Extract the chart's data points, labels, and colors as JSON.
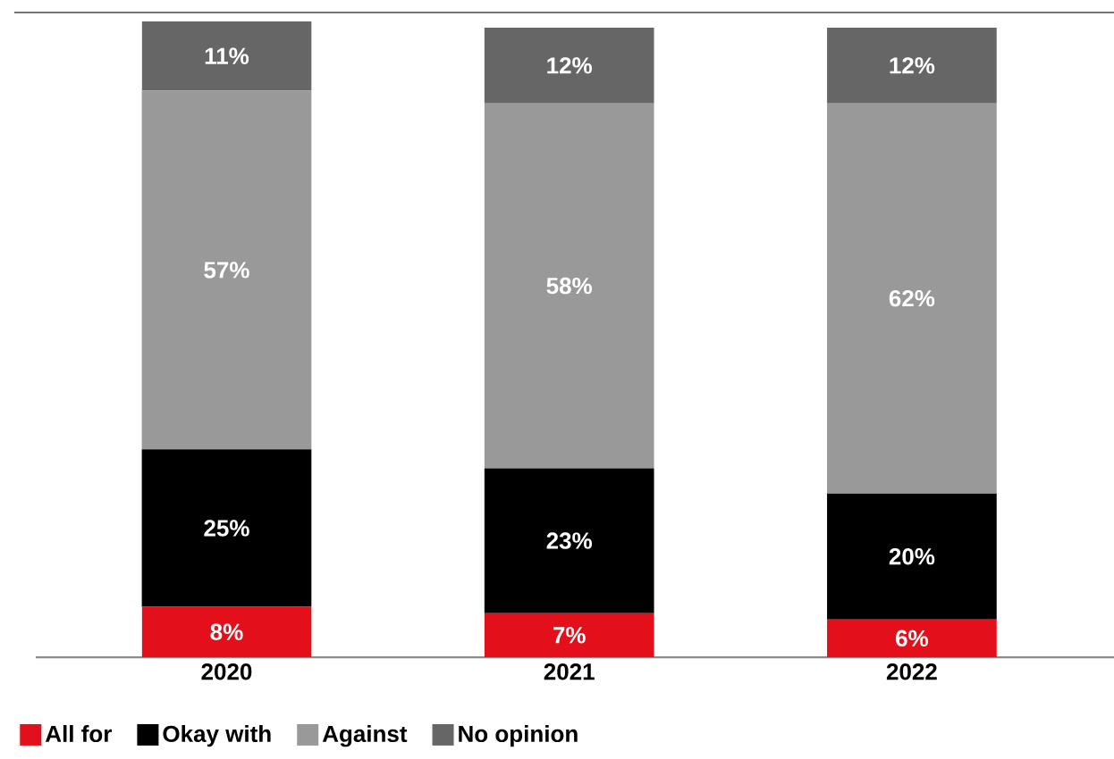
{
  "chart_data": {
    "type": "bar",
    "stacked": true,
    "categories": [
      "2020",
      "2021",
      "2022"
    ],
    "ylim": [
      0,
      101
    ],
    "series": [
      {
        "name": "All for",
        "color": "#e3101b",
        "values": [
          8,
          7,
          6
        ],
        "value_labels": [
          "8%",
          "7%",
          "6%"
        ]
      },
      {
        "name": "Okay with",
        "color": "#000000",
        "values": [
          25,
          23,
          20
        ],
        "value_labels": [
          "25%",
          "23%",
          "20%"
        ]
      },
      {
        "name": "Against",
        "color": "#999999",
        "values": [
          57,
          58,
          62
        ],
        "value_labels": [
          "57%",
          "58%",
          "62%"
        ]
      },
      {
        "name": "No opinion",
        "color": "#666666",
        "values": [
          11,
          12,
          12
        ],
        "value_labels": [
          "11%",
          "12%",
          "12%"
        ]
      }
    ],
    "legend": "bottom"
  }
}
